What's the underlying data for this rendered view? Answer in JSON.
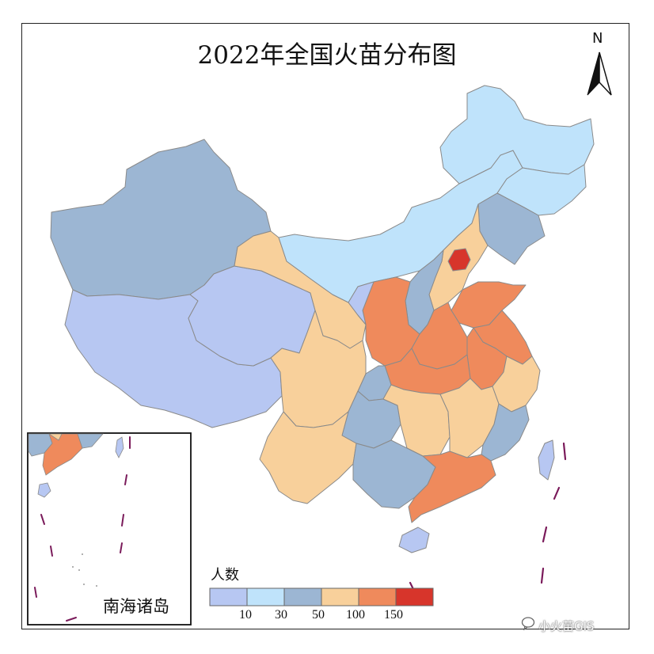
{
  "map": {
    "title": "2022年全国火苗分布图",
    "north_label": "N",
    "inset_label": "南海诸岛",
    "watermark": "小火苗GIS",
    "legend": {
      "title": "人数",
      "ticks": [
        "10",
        "30",
        "50",
        "100",
        "150"
      ],
      "classes": [
        {
          "color": "#b7c7f2"
        },
        {
          "color": "#bfe3fb"
        },
        {
          "color": "#9cb6d3"
        },
        {
          "color": "#f8d09b"
        },
        {
          "color": "#ef8a5c"
        },
        {
          "color": "#d7352b"
        }
      ]
    },
    "colors": {
      "class1": "#b7c7f2",
      "class2": "#bfe3fb",
      "class3": "#9cb6d3",
      "class4": "#f8d09b",
      "class5": "#ef8a5c",
      "class6": "#d7352b",
      "border": "#8a8a8a",
      "dash": "#7a1a5a"
    }
  }
}
